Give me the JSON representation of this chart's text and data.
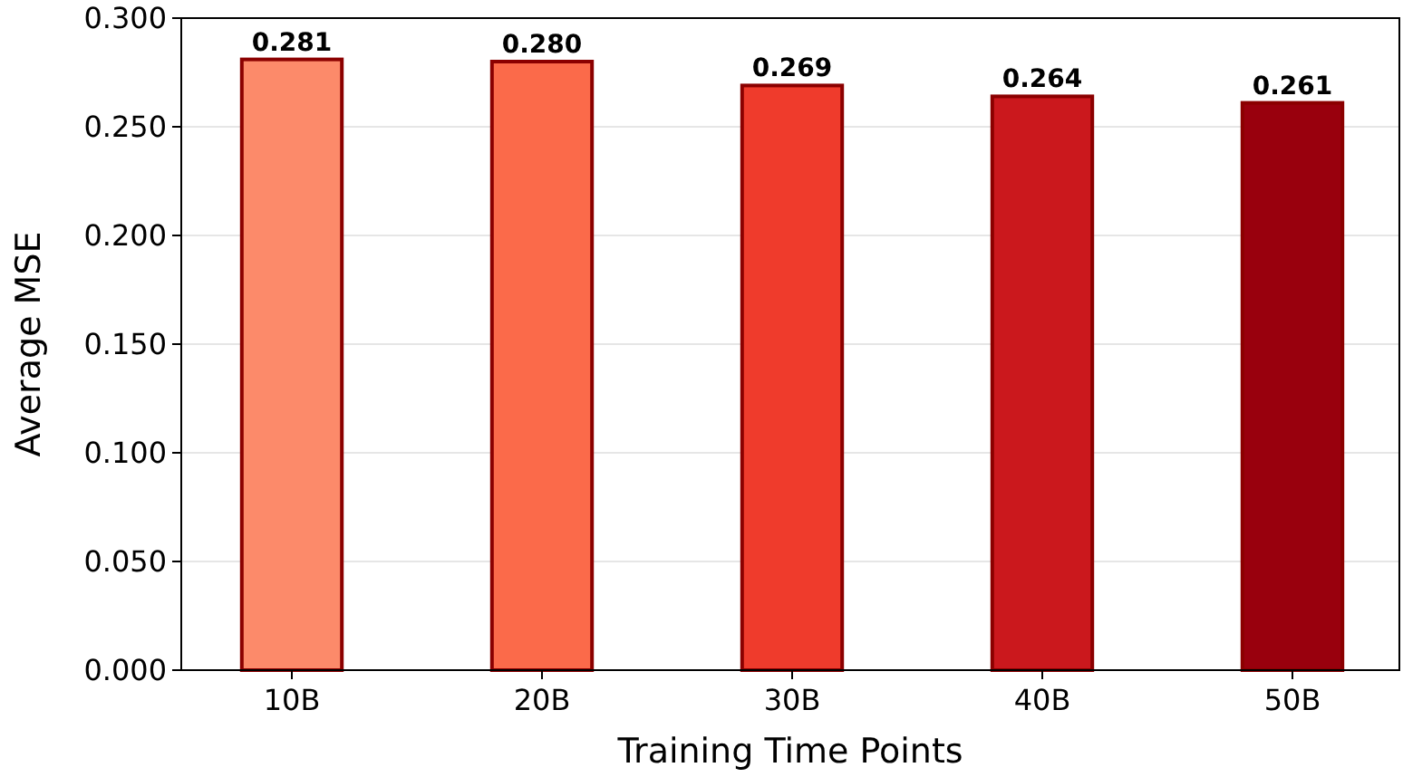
{
  "chart_data": {
    "type": "bar",
    "xlabel": "Training Time Points",
    "ylabel": "Average MSE",
    "categories": [
      "10B",
      "20B",
      "30B",
      "40B",
      "50B"
    ],
    "values": [
      0.281,
      0.28,
      0.269,
      0.264,
      0.261
    ],
    "colors": [
      "#fc8a6a",
      "#fb6a4a",
      "#ef3b2c",
      "#cb181d",
      "#99000d"
    ],
    "value_labels": [
      "0.281",
      "0.280",
      "0.269",
      "0.264",
      "0.261"
    ],
    "ylim": [
      0,
      0.3
    ],
    "yticks": [
      {
        "value": 0,
        "label": "0.000"
      },
      {
        "value": 0.05,
        "label": "0.050"
      },
      {
        "value": 0.1,
        "label": "0.100"
      },
      {
        "value": 0.15,
        "label": "0.150"
      },
      {
        "value": 0.2,
        "label": "0.200"
      },
      {
        "value": 0.25,
        "label": "0.250"
      },
      {
        "value": 0.3,
        "label": "0.300"
      }
    ],
    "grid": "y"
  }
}
